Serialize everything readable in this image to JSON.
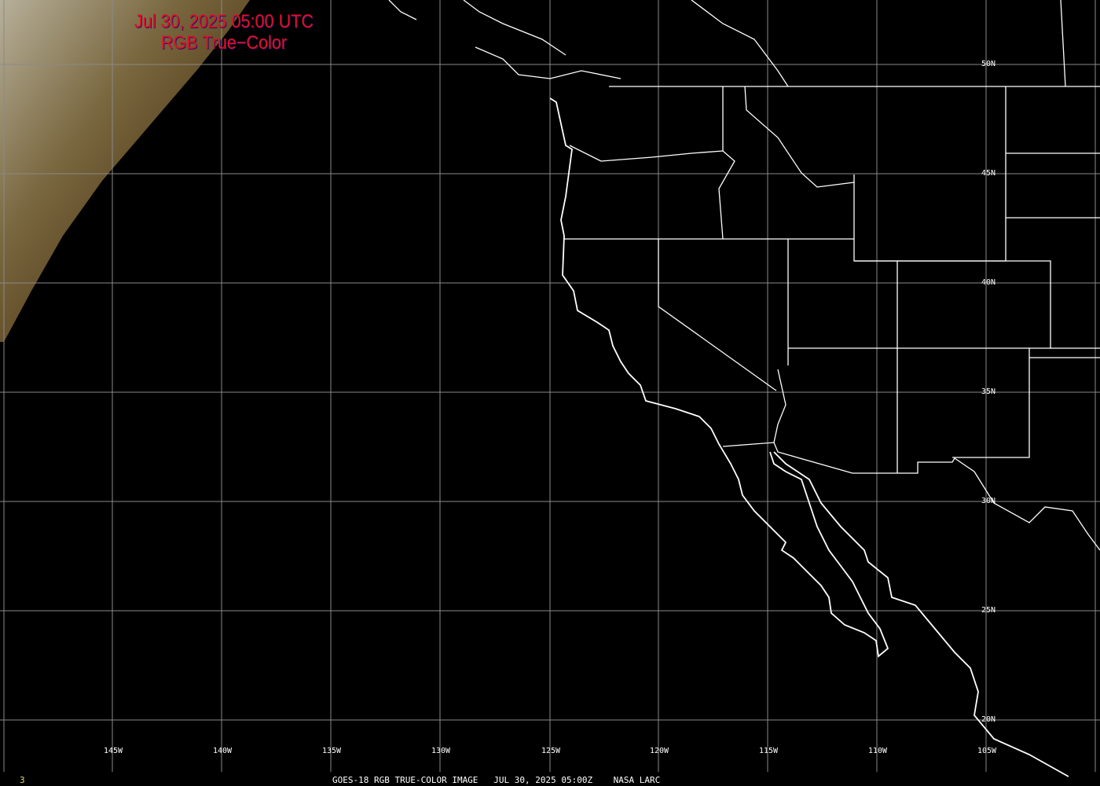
{
  "title": {
    "line1": "Jul 30, 2025 05:00 UTC",
    "line2": "RGB True−Color"
  },
  "lat_labels": [
    "50N",
    "45N",
    "40N",
    "35N",
    "30N",
    "25N",
    "20N"
  ],
  "lon_labels": [
    "145W",
    "140W",
    "135W",
    "130W",
    "125W",
    "120W",
    "115W",
    "110W",
    "105W"
  ],
  "caption": {
    "frame": "3",
    "text": "GOES-18 RGB TRUE-COLOR IMAGE   JUL 30, 2025 05:00Z    NASA LARC"
  },
  "colors": {
    "title": "#e0102a",
    "grid": "#8a8a8a",
    "coast": "#ffffff",
    "frame_number": "#e8d870"
  }
}
